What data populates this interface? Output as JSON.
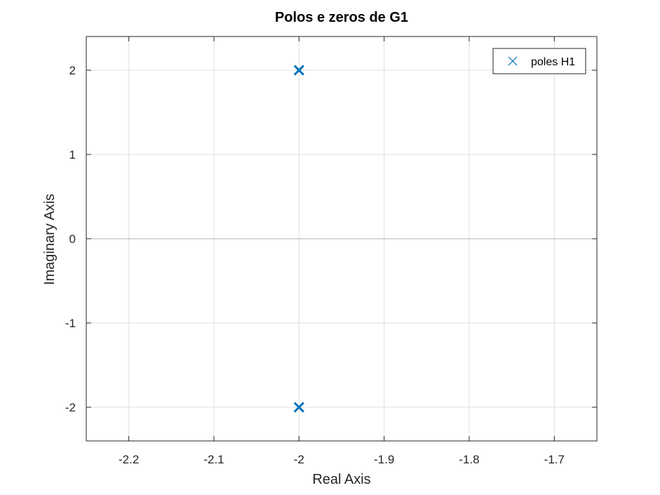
{
  "chart_data": {
    "type": "scatter",
    "title": "Polos e zeros de G1",
    "xlabel": "Real Axis",
    "ylabel": "Imaginary Axis",
    "xlim": [
      -2.25,
      -1.65
    ],
    "ylim": [
      -2.4,
      2.4
    ],
    "xticks": [
      -2.2,
      -2.1,
      -2.0,
      -1.9,
      -1.8,
      -1.7
    ],
    "xtick_labels": [
      "-2.2",
      "-2.1",
      "-2",
      "-1.9",
      "-1.8",
      "-1.7"
    ],
    "yticks": [
      -2,
      -1,
      0,
      1,
      2
    ],
    "ytick_labels": [
      "-2",
      "-1",
      "0",
      "1",
      "2"
    ],
    "grid": true,
    "legend_position": "top-right",
    "series": [
      {
        "name": "poles H1",
        "marker": "x",
        "color": "#0072BD",
        "points": [
          {
            "x": -2.0,
            "y": 2.0
          },
          {
            "x": -2.0,
            "y": -2.0
          }
        ]
      }
    ]
  }
}
